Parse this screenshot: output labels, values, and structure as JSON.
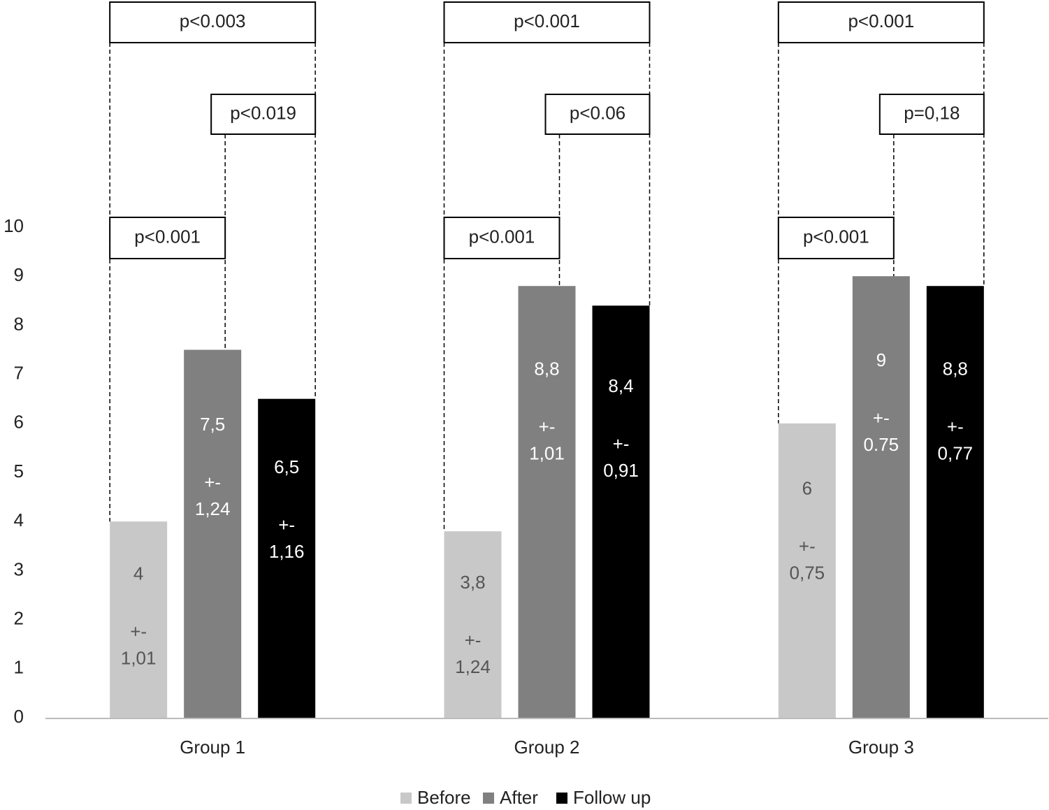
{
  "chart_data": {
    "type": "bar",
    "categories": [
      "Group 1",
      "Group 2",
      "Group 3"
    ],
    "series": [
      {
        "name": "Before",
        "color": "#c8c8c8",
        "label_color": "#555555",
        "values": [
          4,
          3.8,
          6
        ],
        "value_labels": [
          "4",
          "3,8",
          "6"
        ],
        "errors": [
          1.01,
          1.24,
          0.75
        ],
        "error_labels": [
          "1,01",
          "1,24",
          "0,75"
        ]
      },
      {
        "name": "After",
        "color": "#808080",
        "label_color": "#ffffff",
        "values": [
          7.5,
          8.8,
          9
        ],
        "value_labels": [
          "7,5",
          "8,8",
          "9"
        ],
        "errors": [
          1.24,
          1.01,
          0.75
        ],
        "error_labels": [
          "1,24",
          "1,01",
          "0.75"
        ]
      },
      {
        "name": "Follow up",
        "color": "#000000",
        "label_color": "#ffffff",
        "values": [
          6.5,
          8.4,
          8.8
        ],
        "value_labels": [
          "6,5",
          "8,4",
          "8,8"
        ],
        "errors": [
          1.16,
          0.91,
          0.77
        ],
        "error_labels": [
          "1,16",
          "0,91",
          "0,77"
        ]
      }
    ],
    "error_prefix": "+-",
    "ylim": [
      0,
      10
    ],
    "yticks": [
      0,
      1,
      2,
      3,
      4,
      5,
      6,
      7,
      8,
      9,
      10
    ],
    "grid": false,
    "legend": "bottom",
    "significance": [
      {
        "before_after": "p<0.001",
        "after_follow_up": "p<0.019",
        "before_follow_up": "p<0.003"
      },
      {
        "before_after": "p<0.001",
        "after_follow_up": "p<0.06",
        "before_follow_up": "p<0.001"
      },
      {
        "before_after": "p<0.001",
        "after_follow_up": "p=0,18",
        "before_follow_up": "p<0.001"
      }
    ]
  }
}
